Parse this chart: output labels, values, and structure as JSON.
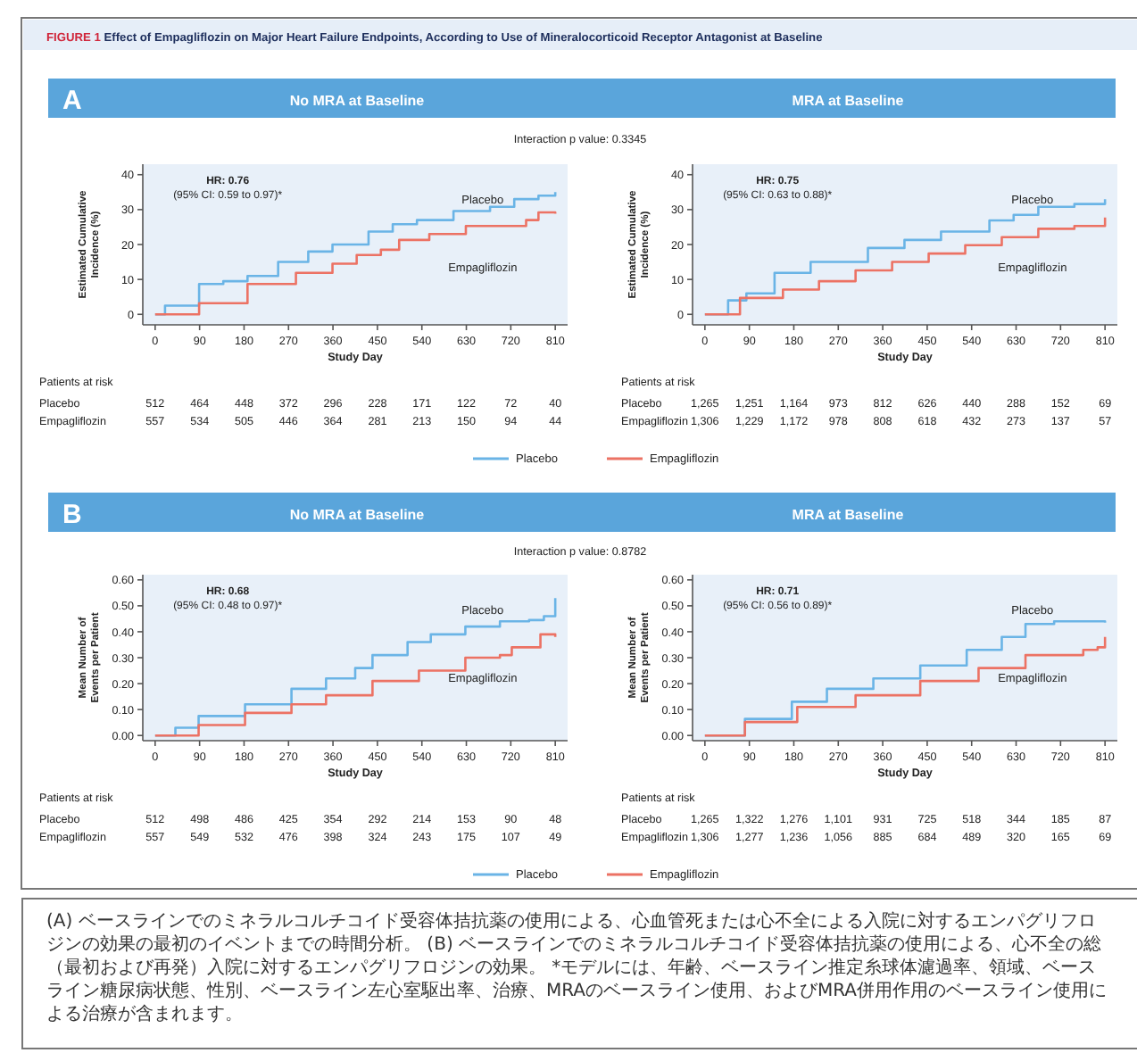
{
  "chart_data": [
    {
      "type": "other",
      "title": "FIGURE 1 Effect of Empagliflozin on Major Heart Failure Endpoints, According to Use of Mineralocorticoid Receptor Antagonist at Baseline",
      "annotations": [
        "(A) ベースラインでのミネラルコルチコイド受容体拮抗薬の使用による、心血管死または心不全による入院に対するエンパグリフロジンの効果の最初のイベントまでの時間分析。 (B) ベースラインでのミネラルコルチコイド受容体拮抗薬の使用による、心不全の総（最初および再発）入院に対するエンパグリフロジンの効果。 *モデルには、年齢、ベースライン推定糸球体濾過率、領域、ベースライン糖尿病状態、性別、ベースライン左心室駆出率、治療、MRAのベースライン使用、およびMRA併用作用のベースライン使用による治療が含まれます。"
      ]
    },
    {
      "type": "step",
      "title": "No MRA at Baseline",
      "xlabel": "Study Day",
      "ylabel": "Estimated Cumulative Incidence (%)",
      "xlim": [
        -25,
        835
      ],
      "xticks": [
        0,
        90,
        180,
        270,
        360,
        450,
        540,
        630,
        720,
        810
      ],
      "ylim": [
        -3,
        43
      ],
      "yticks": [
        0,
        10,
        20,
        30,
        40
      ],
      "legend": "bottom",
      "annotations": [
        "A",
        "Interaction p value: 0.3345",
        "HR: 0.76",
        "(95% CI: 0.59 to 0.97)*",
        "Patients at risk",
        "Placebo",
        "512 464 448 372 296 228 171 122 72 40",
        "Empagliflozin",
        "557 534 505 446 364 281 213 150 94 44"
      ],
      "series": [
        {
          "name": "Placebo",
          "color": "#6ab4e6",
          "x": [
            0,
            20,
            89,
            138,
            187,
            249,
            310,
            359,
            396,
            432,
            481,
            530,
            604,
            678,
            727,
            776,
            810
          ],
          "values": [
            0,
            2.5,
            8.7,
            9.5,
            11,
            15,
            18,
            20,
            20,
            23.7,
            25.8,
            27,
            29.6,
            30.8,
            33,
            34,
            35
          ]
        },
        {
          "name": "Empagliflozin",
          "color": "#ec7264",
          "x": [
            0,
            89,
            187,
            285,
            359,
            408,
            457,
            494,
            555,
            629,
            702,
            751,
            776,
            810
          ],
          "values": [
            0,
            3.2,
            8.7,
            11.9,
            14.5,
            17,
            18.5,
            21.3,
            23,
            25.3,
            25.3,
            27,
            29.2,
            28.8
          ]
        }
      ]
    },
    {
      "type": "step",
      "title": "MRA at Baseline",
      "xlabel": "Study Day",
      "ylabel": "Estimated Cumulative Incidence (%)",
      "xlim": [
        -25,
        835
      ],
      "xticks": [
        0,
        90,
        180,
        270,
        360,
        450,
        540,
        630,
        720,
        810
      ],
      "ylim": [
        -3,
        43
      ],
      "yticks": [
        0,
        10,
        20,
        30,
        40
      ],
      "annotations": [
        "HR: 0.75",
        "(95% CI: 0.63 to 0.88)*",
        "Patients at risk",
        "Placebo",
        "1,265 1,251 1,164 973 812 626 440 288 152 69",
        "Empagliflozin",
        "1,306 1,229 1,172 978 808 618 432 273 137 57"
      ],
      "series": [
        {
          "name": "Placebo",
          "color": "#6ab4e6",
          "x": [
            0,
            47,
            84,
            141,
            214,
            330,
            404,
            478,
            576,
            625,
            675,
            748,
            785,
            810
          ],
          "values": [
            0,
            4,
            6,
            11.9,
            15,
            19,
            21.3,
            23.7,
            26.9,
            28.5,
            30.8,
            31.6,
            31.6,
            33
          ]
        },
        {
          "name": "Empagliflozin",
          "color": "#ec7264",
          "x": [
            0,
            71,
            158,
            231,
            305,
            379,
            453,
            527,
            601,
            675,
            748,
            810
          ],
          "values": [
            0,
            4.7,
            7.1,
            9.5,
            12.6,
            15,
            17.4,
            19.8,
            22.1,
            24.5,
            25.3,
            27.7
          ]
        }
      ]
    },
    {
      "type": "step",
      "title": "No MRA at Baseline",
      "xlabel": "Study Day",
      "ylabel": "Mean Number of Events per Patient",
      "xlim": [
        -25,
        835
      ],
      "xticks": [
        0,
        90,
        180,
        270,
        360,
        450,
        540,
        630,
        720,
        810
      ],
      "ylim": [
        -0.02,
        0.62
      ],
      "yticks": [
        {
          "value": 0,
          "label": "0.00"
        },
        {
          "value": 0.1,
          "label": "0.10"
        },
        {
          "value": 0.2,
          "label": "0.20"
        },
        {
          "value": 0.3,
          "label": "0.30"
        },
        {
          "value": 0.4,
          "label": "0.40"
        },
        {
          "value": 0.5,
          "label": "0.50"
        },
        {
          "value": 0.6,
          "label": "0.60"
        }
      ],
      "legend": "bottom",
      "annotations": [
        "B",
        "Interaction p value: 0.8782",
        "HR: 0.68",
        "(95% CI: 0.48 to 0.97)*",
        "Patients at risk",
        "Placebo",
        "512 498 486 425 354 292 214 153 90 48",
        "Empagliflozin",
        "557 549 532 476 398 324 243 175 107 49"
      ],
      "series": [
        {
          "name": "Placebo",
          "color": "#6ab4e6",
          "x": [
            0,
            41,
            88,
            182,
            276,
            346,
            405,
            440,
            511,
            558,
            628,
            698,
            757,
            787,
            810
          ],
          "values": [
            0,
            0.03,
            0.075,
            0.12,
            0.18,
            0.22,
            0.26,
            0.31,
            0.36,
            0.39,
            0.42,
            0.44,
            0.445,
            0.46,
            0.53
          ]
        },
        {
          "name": "Empagliflozin",
          "color": "#ec7264",
          "x": [
            0,
            88,
            182,
            276,
            346,
            440,
            534,
            628,
            698,
            722,
            745,
            780,
            810
          ],
          "values": [
            0,
            0.04,
            0.087,
            0.12,
            0.155,
            0.21,
            0.25,
            0.3,
            0.31,
            0.34,
            0.34,
            0.39,
            0.38
          ]
        }
      ]
    },
    {
      "type": "step",
      "title": "MRA at Baseline",
      "xlabel": "Study Day",
      "ylabel": "Mean Number of Events per Patient",
      "xlim": [
        -25,
        835
      ],
      "xticks": [
        0,
        90,
        180,
        270,
        360,
        450,
        540,
        630,
        720,
        810
      ],
      "ylim": [
        -0.02,
        0.62
      ],
      "yticks": [
        {
          "value": 0,
          "label": "0.00"
        },
        {
          "value": 0.1,
          "label": "0.10"
        },
        {
          "value": 0.2,
          "label": "0.20"
        },
        {
          "value": 0.3,
          "label": "0.30"
        },
        {
          "value": 0.4,
          "label": "0.40"
        },
        {
          "value": 0.5,
          "label": "0.50"
        },
        {
          "value": 0.6,
          "label": "0.60"
        }
      ],
      "annotations": [
        "HR: 0.71",
        "(95% CI: 0.56 to 0.89)*",
        "Patients at risk",
        "Placebo",
        "1,265 1,322 1,276 1,101 931 725 518 344 185 87",
        "Empagliflozin",
        "1,306 1,277 1,236 1,056 885 684 489 320 165 69"
      ],
      "series": [
        {
          "name": "Placebo",
          "color": "#6ab4e6",
          "x": [
            0,
            81,
            176,
            247,
            341,
            436,
            530,
            601,
            649,
            707,
            810
          ],
          "values": [
            0,
            0.064,
            0.13,
            0.18,
            0.22,
            0.27,
            0.33,
            0.38,
            0.43,
            0.44,
            0.435
          ]
        },
        {
          "name": "Empagliflozin",
          "color": "#ec7264",
          "x": [
            0,
            81,
            187,
            305,
            436,
            554,
            649,
            766,
            795,
            810
          ],
          "values": [
            0,
            0.052,
            0.11,
            0.155,
            0.21,
            0.26,
            0.31,
            0.33,
            0.34,
            0.38
          ]
        }
      ]
    }
  ]
}
